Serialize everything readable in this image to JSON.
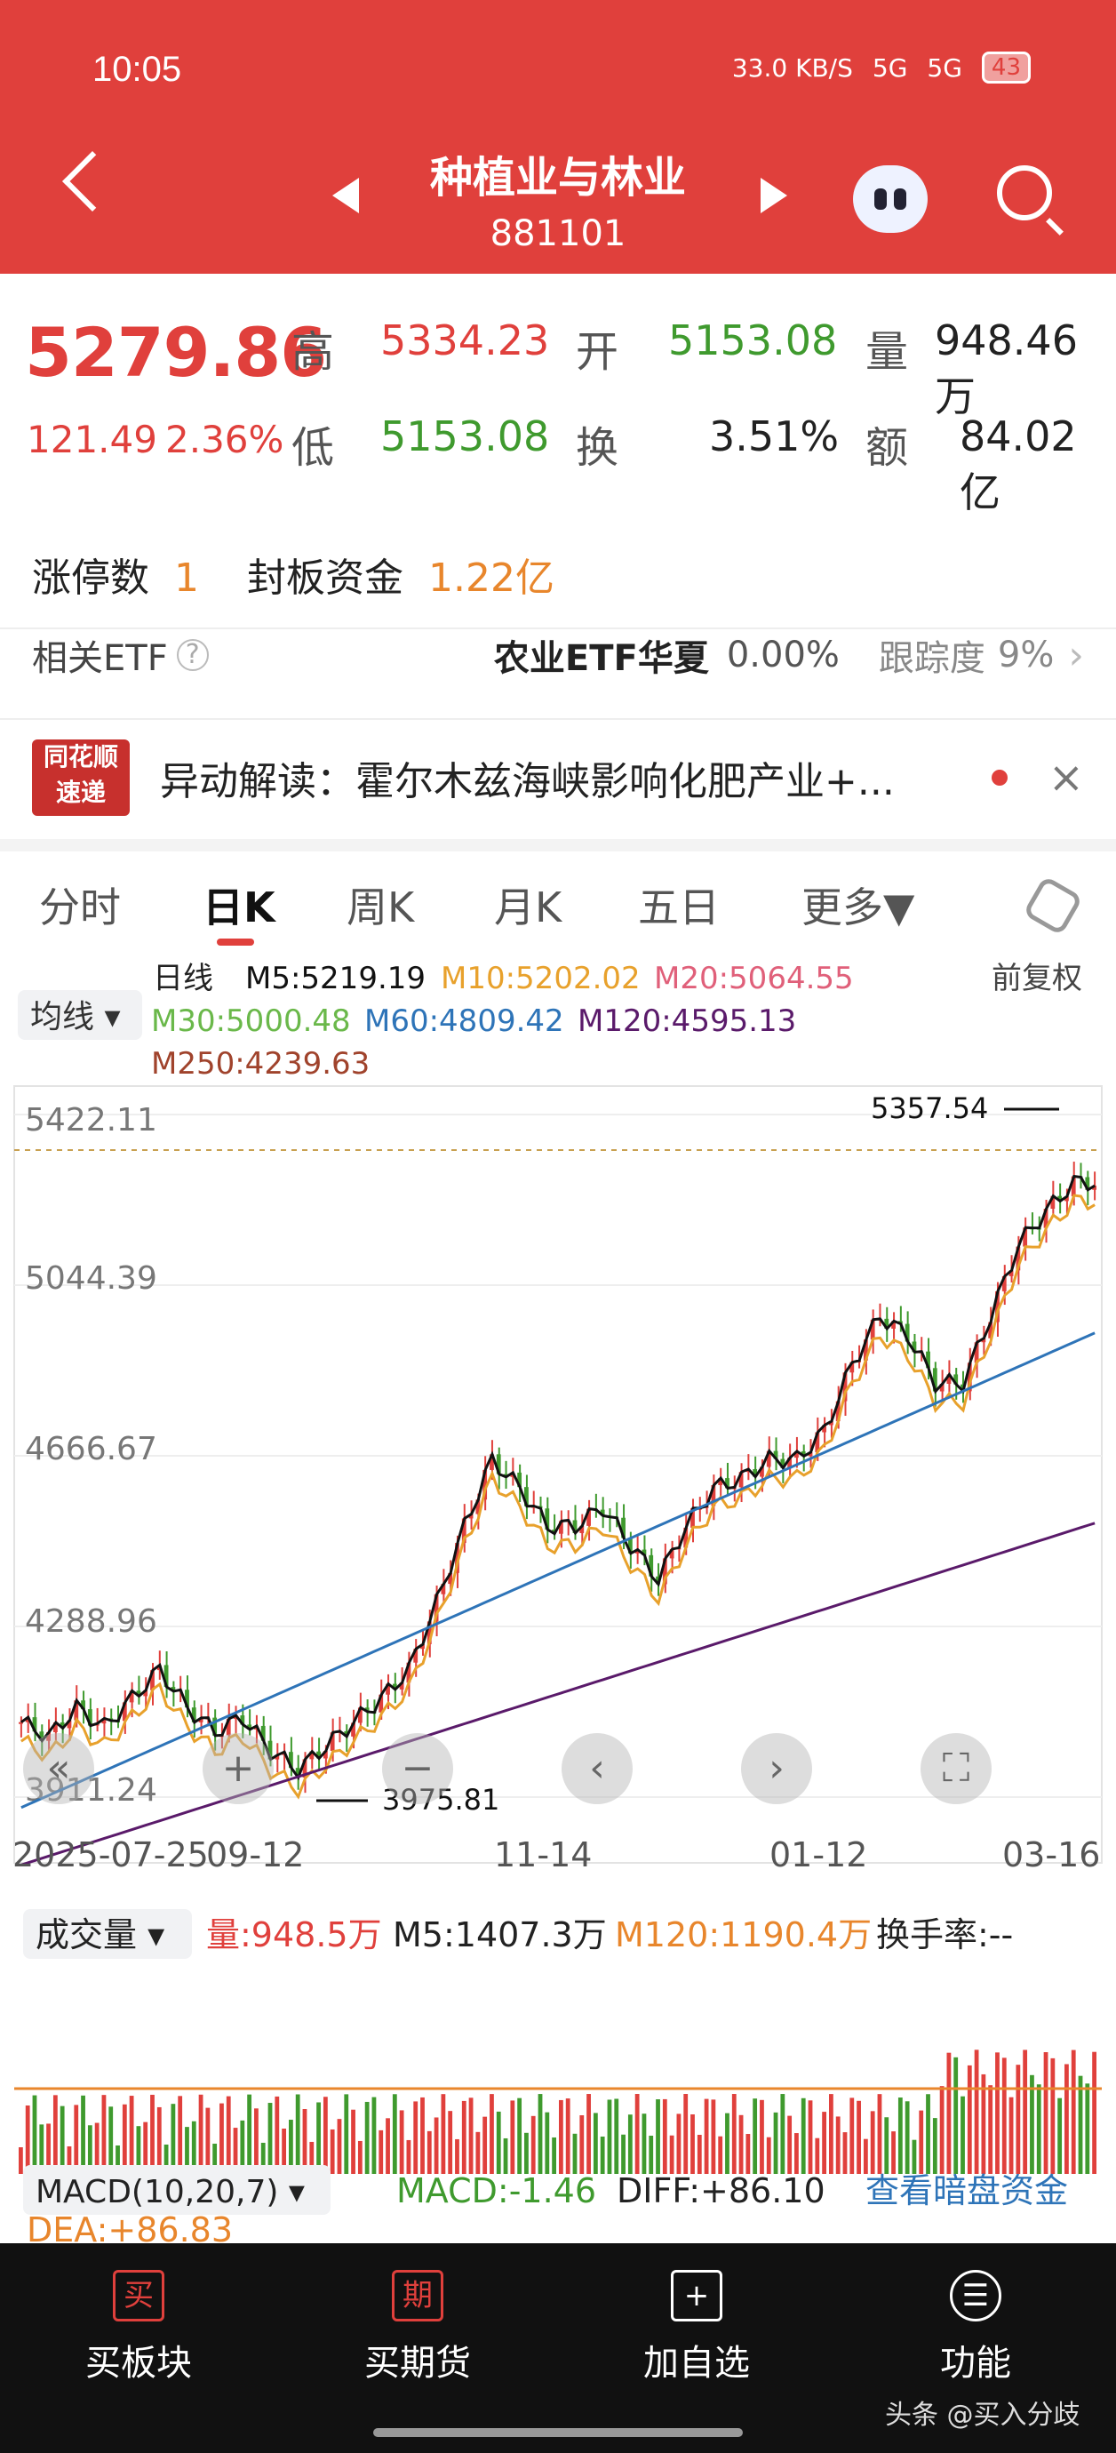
{
  "status": {
    "time": "10:05",
    "speed": "33.0 KB/S",
    "net1": "5G",
    "net2": "5G",
    "battery": "43"
  },
  "header": {
    "title": "种植业与林业",
    "code": "881101"
  },
  "quote": {
    "price": "5279.86",
    "change": "121.49",
    "change_pct": "2.36%",
    "high_label": "高",
    "high": "5334.23",
    "open_label": "开",
    "open": "5153.08",
    "vol_label": "量",
    "vol": "948.46万",
    "low_label": "低",
    "low": "5153.08",
    "turnover_label": "换",
    "turnover": "3.51%",
    "amount_label": "额",
    "amount": "84.02亿"
  },
  "limit": {
    "count_label": "涨停数",
    "count": "1",
    "fund_label": "封板资金",
    "fund": "1.22亿"
  },
  "etf": {
    "label": "相关ETF",
    "name": "农业ETF华夏",
    "pct": "0.00%",
    "track_label": "跟踪度",
    "track": "9%"
  },
  "news": {
    "logo_top": "同花顺",
    "logo_bottom": "速递",
    "text": "异动解读：霍尔木兹海峡影响化肥产业+..."
  },
  "tabs": [
    "分时",
    "日K",
    "周K",
    "月K",
    "五日",
    "更多▼"
  ],
  "ma": {
    "selector": "均线 ▾",
    "period": "日线",
    "m5": "M5:5219.19",
    "m10": "M10:5202.02",
    "m20": "M20:5064.55",
    "m30": "M30:5000.48",
    "m60": "M60:4809.42",
    "m120": "M120:4595.13",
    "m250": "M250:4239.63",
    "adjust": "前复权"
  },
  "chart_data": {
    "type": "candlestick",
    "yticks": [
      "5422.11",
      "5044.39",
      "4666.67",
      "4288.96",
      "3911.24"
    ],
    "ylim": [
      3911.24,
      5422.11
    ],
    "xticks": [
      "2025-07-25",
      "09-12",
      "11-14",
      "01-12",
      "03-16"
    ],
    "max_label": "5357.54",
    "min_label": "3975.81",
    "close_trend": [
      4150,
      4120,
      4180,
      4140,
      4200,
      4260,
      4180,
      4130,
      4160,
      4090,
      4050,
      4100,
      4150,
      4200,
      4260,
      4400,
      4560,
      4700,
      4640,
      4560,
      4560,
      4600,
      4520,
      4450,
      4560,
      4640,
      4660,
      4700,
      4700,
      4760,
      4900,
      5000,
      4960,
      4860,
      4860,
      5000,
      5150,
      5220,
      5280
    ]
  },
  "volume": {
    "selector": "成交量 ▾",
    "vol": "量:948.5万",
    "m5": "M5:1407.3万",
    "m120": "M120:1190.4万",
    "turnover": "换手率:--"
  },
  "macd": {
    "selector": "MACD(10,20,7) ▾",
    "macd": "MACD:-1.46",
    "diff": "DIFF:+86.10",
    "dea": "DEA:+86.83",
    "link": "查看暗盘资金"
  },
  "bottom": [
    {
      "icon": "买",
      "label": "买板块"
    },
    {
      "icon": "期",
      "label": "买期货"
    },
    {
      "icon": "+",
      "label": "加自选"
    },
    {
      "icon": "☰",
      "label": "功能"
    }
  ],
  "watermark": "头条 @买入分歧"
}
